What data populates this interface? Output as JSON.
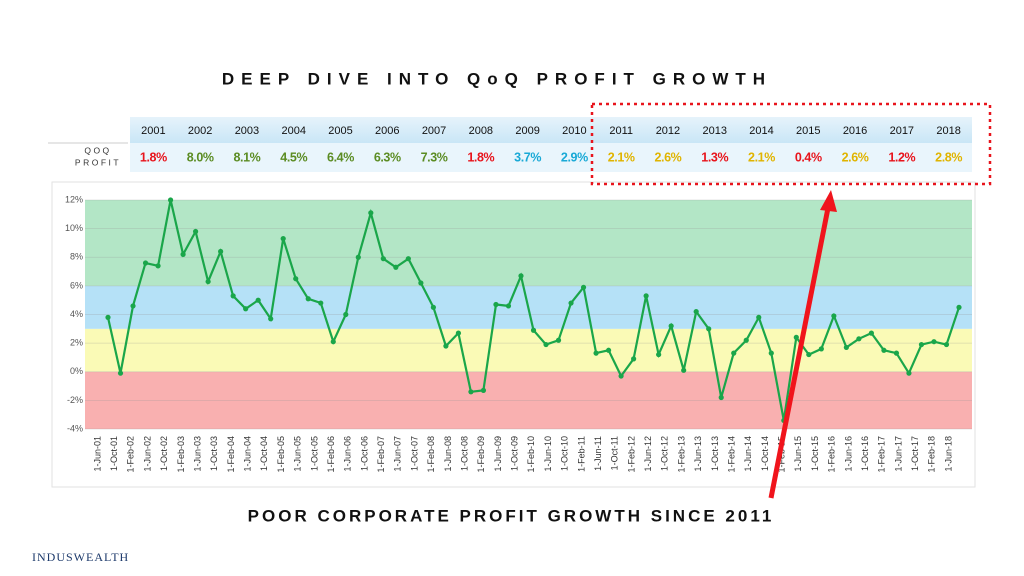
{
  "chart_data": {
    "type": "line",
    "title": "DEEP DIVE INTO QoQ PROFIT GROWTH",
    "subtitle": "POOR CORPORATE PROFIT GROWTH SINCE 2011",
    "brand": "INDUSWEALTH",
    "table": {
      "row_label": [
        "QOQ",
        "PROFIT"
      ],
      "years": [
        "2001",
        "2002",
        "2003",
        "2004",
        "2005",
        "2006",
        "2007",
        "2008",
        "2009",
        "2010",
        "2011",
        "2012",
        "2013",
        "2014",
        "2015",
        "2016",
        "2017",
        "2018"
      ],
      "values": [
        1.8,
        8.0,
        8.1,
        4.5,
        6.4,
        6.3,
        7.3,
        1.8,
        3.7,
        2.9,
        2.1,
        2.6,
        1.3,
        2.1,
        0.4,
        2.6,
        1.2,
        2.8
      ],
      "value_labels": [
        "1.8%",
        "8.0%",
        "8.1%",
        "4.5%",
        "6.4%",
        "6.3%",
        "7.3%",
        "1.8%",
        "3.7%",
        "2.9%",
        "2.1%",
        "2.6%",
        "1.3%",
        "2.1%",
        "0.4%",
        "2.6%",
        "1.2%",
        "2.8%"
      ],
      "colors": [
        "#e8141c",
        "#5b8c23",
        "#5b8c23",
        "#5b8c23",
        "#5b8c23",
        "#5b8c23",
        "#5b8c23",
        "#e8141c",
        "#19a9d6",
        "#19a9d6",
        "#e0b400",
        "#e0b400",
        "#e8141c",
        "#e0b400",
        "#e8141c",
        "#e0b400",
        "#e8141c",
        "#e0b400"
      ]
    },
    "x_labels": [
      "1-Jun-01",
      "1-Oct-01",
      "1-Feb-02",
      "1-Jun-02",
      "1-Oct-02",
      "1-Feb-03",
      "1-Jun-03",
      "1-Oct-03",
      "1-Feb-04",
      "1-Jun-04",
      "1-Oct-04",
      "1-Feb-05",
      "1-Jun-05",
      "1-Oct-05",
      "1-Feb-06",
      "1-Jun-06",
      "1-Oct-06",
      "1-Feb-07",
      "1-Jun-07",
      "1-Oct-07",
      "1-Feb-08",
      "1-Jun-08",
      "1-Oct-08",
      "1-Feb-09",
      "1-Jun-09",
      "1-Oct-09",
      "1-Feb-10",
      "1-Jun-10",
      "1-Oct-10",
      "1-Feb-11",
      "1-Jun-11",
      "1-Oct-11",
      "1-Feb-12",
      "1-Jun-12",
      "1-Oct-12",
      "1-Feb-13",
      "1-Jun-13",
      "1-Oct-13",
      "1-Feb-14",
      "1-Jun-14",
      "1-Oct-14",
      "1-Feb-15",
      "1-Jun-15",
      "1-Oct-15",
      "1-Feb-16",
      "1-Jun-16",
      "1-Oct-16",
      "1-Feb-17",
      "1-Jun-17",
      "1-Oct-17",
      "1-Feb-18",
      "1-Jun-18"
    ],
    "values": [
      3.8,
      -0.1,
      4.6,
      7.6,
      7.4,
      12.0,
      8.2,
      9.8,
      6.3,
      8.4,
      5.3,
      4.4,
      5.0,
      3.7,
      9.3,
      6.5,
      5.1,
      4.8,
      2.1,
      4.0,
      8.0,
      11.1,
      7.9,
      7.3,
      7.9,
      6.2,
      4.5,
      1.8,
      2.7,
      -1.4,
      -1.3,
      4.7,
      4.6,
      6.7,
      2.9,
      1.9,
      2.2,
      4.8,
      5.9,
      1.3,
      1.5,
      -0.3,
      0.9,
      5.3,
      1.2,
      3.2,
      0.1,
      4.2,
      3.0,
      -1.8,
      1.3,
      2.2,
      3.8,
      1.3,
      -3.4,
      2.4,
      1.2,
      1.6,
      3.9,
      1.7,
      2.3,
      2.7,
      1.5,
      1.3,
      -0.1,
      1.9,
      2.1,
      1.9,
      4.5
    ],
    "color": "#1aa64a",
    "ylim": [
      -4,
      12
    ],
    "yticks": [
      {
        "value": -4,
        "label": "-4%"
      },
      {
        "value": -2,
        "label": "-2%"
      },
      {
        "value": 0,
        "label": "0%"
      },
      {
        "value": 2,
        "label": "2%"
      },
      {
        "value": 4,
        "label": "4%"
      },
      {
        "value": 6,
        "label": "6%"
      },
      {
        "value": 8,
        "label": "8%"
      },
      {
        "value": 10,
        "label": "10%"
      },
      {
        "value": 12,
        "label": "12%"
      }
    ],
    "bands": [
      {
        "from": -4,
        "to": 0,
        "color": "#f9b0b0"
      },
      {
        "from": 0,
        "to": 3,
        "color": "#fafab6"
      },
      {
        "from": 3,
        "to": 6,
        "color": "#b5e1f7"
      },
      {
        "from": 6,
        "to": 12,
        "color": "#b3e6c6"
      }
    ],
    "grid": true
  }
}
